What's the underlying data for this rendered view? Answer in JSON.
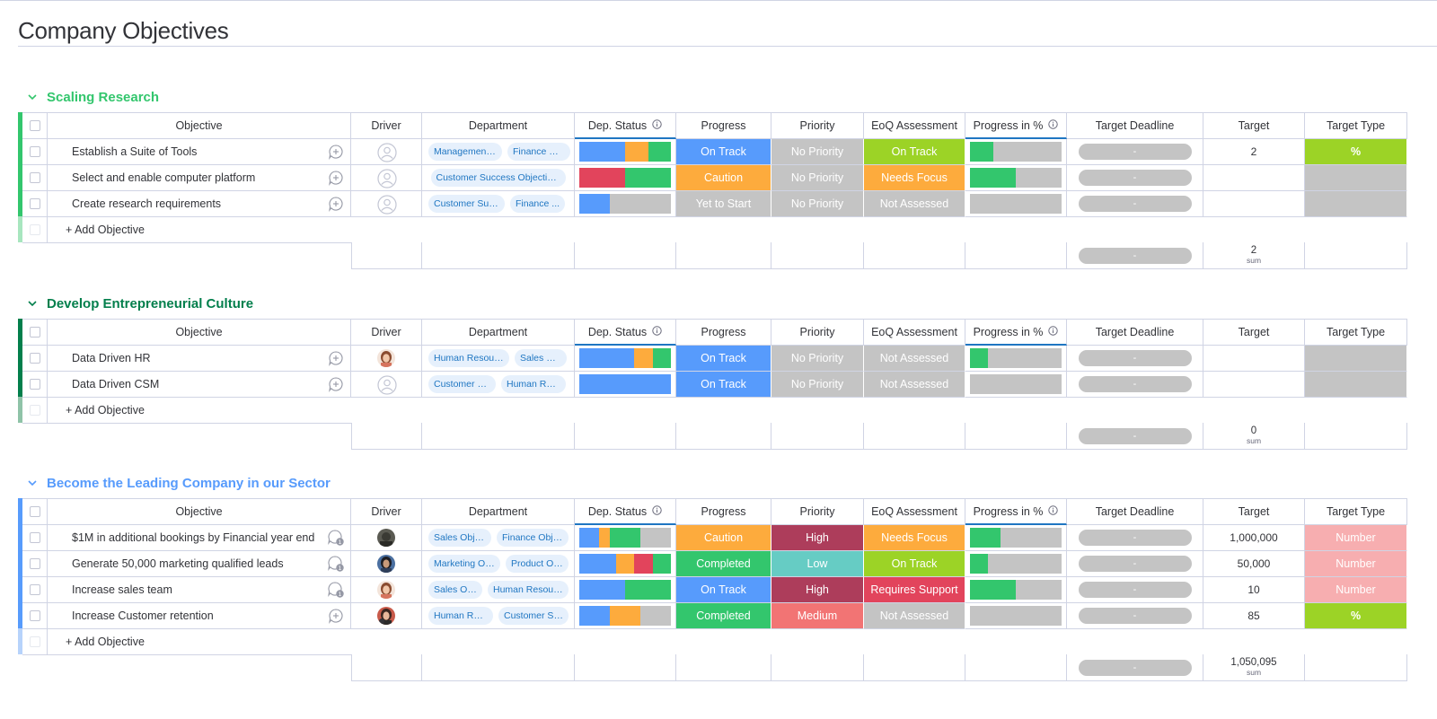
{
  "page_title": "Company Objectives",
  "columns": {
    "objective": "Objective",
    "driver": "Driver",
    "department": "Department",
    "dep_status": "Dep. Status",
    "progress": "Progress",
    "priority": "Priority",
    "eoq": "EoQ Assessment",
    "progress_pct": "Progress in %",
    "deadline": "Target Deadline",
    "target": "Target",
    "target_type": "Target Type"
  },
  "add_label": "+ Add Objective",
  "sum_label": "sum",
  "deadline_placeholder": "-",
  "colors": {
    "on_track": "#579bfc",
    "caution": "#fdab3d",
    "yet_to_start": "#c4c4c4",
    "completed": "#33c66d",
    "no_priority": "#c4c4c4",
    "high": "#ad3d5b",
    "low": "#66ccc4",
    "medium": "#f27474",
    "eoq_on_track": "#9cd326",
    "needs_focus": "#fdab3d",
    "not_assessed": "#c4c4c4",
    "requires_support": "#e2445c",
    "type_pct": "#9cd326",
    "type_number": "#f7aeb0",
    "group1": "#33c66d",
    "group2": "#037f4c",
    "group3": "#579bfc"
  },
  "groups": [
    {
      "name": "Scaling Research",
      "sum": "2",
      "rows": [
        {
          "objective": "Establish a Suite of Tools",
          "departments": [
            "Management ...",
            "Finance Ob..."
          ],
          "progress": "On Track",
          "priority": "No Priority",
          "eoq": "On Track",
          "pct": 0.25,
          "target": "2",
          "target_type": "%"
        },
        {
          "objective": "Select and enable computer platform",
          "departments": [
            "Customer Success Objectives"
          ],
          "progress": "Caution",
          "priority": "No Priority",
          "eoq": "Needs Focus",
          "pct": 0.5,
          "target": "",
          "target_type": ""
        },
        {
          "objective": "Create research requirements",
          "departments": [
            "Customer Succe...",
            "Finance ..."
          ],
          "progress": "Yet to Start",
          "priority": "No Priority",
          "eoq": "Not Assessed",
          "pct": 0,
          "target": "",
          "target_type": ""
        }
      ]
    },
    {
      "name": "Develop Entrepreneurial Culture",
      "sum": "0",
      "rows": [
        {
          "objective": "Data Driven HR",
          "departments": [
            "Human Resource...",
            "Sales Ob..."
          ],
          "progress": "On Track",
          "priority": "No Priority",
          "eoq": "Not Assessed",
          "pct": 0.2,
          "target": "",
          "target_type": ""
        },
        {
          "objective": "Data Driven CSM",
          "departments": [
            "Customer Su...",
            "Human Reso..."
          ],
          "progress": "On Track",
          "priority": "No Priority",
          "eoq": "Not Assessed",
          "pct": 0,
          "target": "",
          "target_type": ""
        }
      ]
    },
    {
      "name": "Become the Leading Company in our Sector",
      "sum": "1,050,095",
      "rows": [
        {
          "objective": "$1M in additional bookings by Financial year end",
          "departments": [
            "Sales Objec...",
            "Finance Objec..."
          ],
          "progress": "Caution",
          "priority": "High",
          "eoq": "Needs Focus",
          "pct": 0.33,
          "target": "1,000,000",
          "target_type": "Number"
        },
        {
          "objective": "Generate 50,000 marketing qualified leads",
          "departments": [
            "Marketing Obj...",
            "Product Obj..."
          ],
          "progress": "Completed",
          "priority": "Low",
          "eoq": "On Track",
          "pct": 0.2,
          "target": "50,000",
          "target_type": "Number"
        },
        {
          "objective": "Increase sales team",
          "departments": [
            "Sales Ob...",
            "Human Resource..."
          ],
          "progress": "On Track",
          "priority": "High",
          "eoq": "Requires Support",
          "pct": 0.5,
          "target": "10",
          "target_type": "Number"
        },
        {
          "objective": "Increase Customer retention",
          "departments": [
            "Human Reso...",
            "Customer Su..."
          ],
          "progress": "Completed",
          "priority": "Medium",
          "eoq": "Not Assessed",
          "pct": 0,
          "target": "85",
          "target_type": "%"
        }
      ]
    }
  ]
}
